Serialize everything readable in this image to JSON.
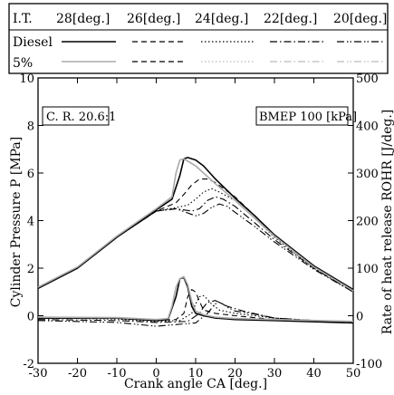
{
  "chart_data": {
    "type": "line",
    "xlabel": "Crank angle CA [deg.]",
    "ylabel_left": "Cylinder Pressure P [MPa]",
    "ylabel_right": "Rate of heat release ROHR [J/deg.]",
    "xlim": [
      -30,
      50
    ],
    "ylim_left": [
      -2,
      10
    ],
    "ylim_right": [
      -100,
      500
    ],
    "xticks": [
      "-30",
      "-20",
      "-10",
      "0",
      "10",
      "20",
      "30",
      "40",
      "50"
    ],
    "yticks_left": [
      "-2",
      "0",
      "2",
      "4",
      "6",
      "8",
      "10"
    ],
    "yticks_right": [
      "-100",
      "0",
      "100",
      "200",
      "300",
      "400",
      "500"
    ],
    "annotations": [
      "C. R. 20.6:1",
      "BMEP 100 [kPa]"
    ],
    "legend": {
      "header": "I.T.",
      "timings": [
        "28[deg.]",
        "26[deg.]",
        "24[deg.]",
        "22[deg.]",
        "20[deg.]"
      ],
      "fuels": [
        "Diesel",
        "5%"
      ]
    },
    "series": [
      {
        "name": "Diesel",
        "timing": "28[deg.]",
        "quantity": "pressure",
        "x": [
          -30,
          -20,
          -10,
          0,
          4,
          6,
          7,
          8,
          10,
          12,
          15,
          20,
          25,
          30,
          40,
          50
        ],
        "y": [
          1.15,
          2.0,
          3.3,
          4.45,
          4.9,
          5.9,
          6.6,
          6.65,
          6.55,
          6.3,
          5.75,
          4.95,
          4.2,
          3.4,
          2.1,
          1.1
        ]
      },
      {
        "name": "Diesel",
        "timing": "26[deg.]",
        "quantity": "pressure",
        "x": [
          -30,
          -20,
          -10,
          0,
          5,
          7,
          9,
          11,
          13,
          15,
          20,
          25,
          30,
          40,
          50
        ],
        "y": [
          1.15,
          2.0,
          3.3,
          4.4,
          4.75,
          5.1,
          5.5,
          5.75,
          5.75,
          5.6,
          5.0,
          4.2,
          3.4,
          2.1,
          1.1
        ]
      },
      {
        "name": "Diesel",
        "timing": "24[deg.]",
        "quantity": "pressure",
        "x": [
          -30,
          -20,
          -10,
          0,
          5,
          8,
          10,
          12,
          14,
          16,
          20,
          25,
          30,
          40,
          50
        ],
        "y": [
          1.15,
          2.0,
          3.3,
          4.4,
          4.55,
          4.65,
          4.9,
          5.2,
          5.35,
          5.2,
          4.85,
          4.1,
          3.3,
          2.0,
          1.0
        ]
      },
      {
        "name": "Diesel",
        "timing": "22[deg.]",
        "quantity": "pressure",
        "x": [
          -30,
          -20,
          -10,
          0,
          5,
          9,
          11,
          13,
          15,
          17,
          20,
          25,
          30,
          40,
          50
        ],
        "y": [
          1.15,
          2.0,
          3.3,
          4.4,
          4.5,
          4.4,
          4.5,
          4.85,
          5.0,
          4.9,
          4.6,
          3.9,
          3.2,
          2.0,
          1.0
        ]
      },
      {
        "name": "Diesel",
        "timing": "20[deg.]",
        "quantity": "pressure",
        "x": [
          -30,
          -20,
          -10,
          0,
          5,
          10,
          12,
          14,
          16,
          18,
          20,
          25,
          30,
          40,
          50
        ],
        "y": [
          1.15,
          2.0,
          3.3,
          4.4,
          4.5,
          4.2,
          4.3,
          4.55,
          4.7,
          4.6,
          4.35,
          3.75,
          3.1,
          1.95,
          1.0
        ]
      },
      {
        "name": "5%",
        "timing": "28[deg.]",
        "quantity": "pressure",
        "x": [
          -30,
          -20,
          -10,
          0,
          4,
          5,
          6,
          7,
          8,
          10,
          12,
          15,
          20,
          25,
          30,
          40,
          50
        ],
        "y": [
          1.2,
          2.05,
          3.35,
          4.5,
          5.0,
          6.0,
          6.55,
          6.6,
          6.5,
          6.3,
          6.0,
          5.55,
          4.85,
          4.1,
          3.35,
          2.05,
          1.05
        ]
      },
      {
        "name": "Diesel",
        "timing": "28[deg.]",
        "quantity": "ROHR",
        "x": [
          -30,
          -10,
          0,
          3,
          5,
          6,
          7,
          8,
          9,
          10,
          12,
          15,
          20,
          30,
          50
        ],
        "y": [
          -5,
          -5,
          -10,
          -8,
          40,
          78,
          80,
          60,
          20,
          5,
          0,
          -5,
          -8,
          -10,
          -15
        ]
      },
      {
        "name": "Diesel",
        "timing": "26[deg.]",
        "quantity": "ROHR",
        "x": [
          -30,
          -10,
          0,
          5,
          7,
          8,
          9,
          10,
          11,
          12,
          15,
          20,
          30,
          50
        ],
        "y": [
          -5,
          -6,
          -10,
          -8,
          5,
          40,
          55,
          50,
          30,
          12,
          5,
          0,
          -8,
          -15
        ]
      },
      {
        "name": "Diesel",
        "timing": "24[deg.]",
        "quantity": "ROHR",
        "x": [
          -30,
          -10,
          0,
          6,
          9,
          10,
          11,
          12,
          13,
          14,
          16,
          20,
          30,
          50
        ],
        "y": [
          -5,
          -7,
          -12,
          -10,
          5,
          25,
          40,
          42,
          35,
          25,
          12,
          5,
          -5,
          -15
        ]
      },
      {
        "name": "Diesel",
        "timing": "22[deg.]",
        "quantity": "ROHR",
        "x": [
          -30,
          -10,
          0,
          8,
          11,
          12,
          13,
          14,
          15,
          16,
          18,
          22,
          30,
          50
        ],
        "y": [
          -8,
          -10,
          -14,
          -12,
          5,
          18,
          28,
          30,
          32,
          28,
          20,
          10,
          -5,
          -15
        ]
      },
      {
        "name": "Diesel",
        "timing": "20[deg.]",
        "quantity": "ROHR",
        "x": [
          -30,
          -10,
          0,
          10,
          13,
          14,
          15,
          16,
          17,
          18,
          20,
          24,
          30,
          50
        ],
        "y": [
          -10,
          -14,
          -22,
          -15,
          5,
          15,
          25,
          28,
          24,
          18,
          10,
          5,
          -5,
          -15
        ]
      },
      {
        "name": "5%",
        "timing": "28[deg.]",
        "quantity": "ROHR",
        "x": [
          -30,
          -10,
          0,
          3,
          4,
          5,
          6,
          7,
          8,
          9,
          10,
          12,
          15,
          20,
          30,
          50
        ],
        "y": [
          -3,
          -4,
          -8,
          -6,
          20,
          60,
          78,
          82,
          65,
          30,
          10,
          2,
          -3,
          -6,
          -8,
          -12
        ]
      }
    ]
  }
}
